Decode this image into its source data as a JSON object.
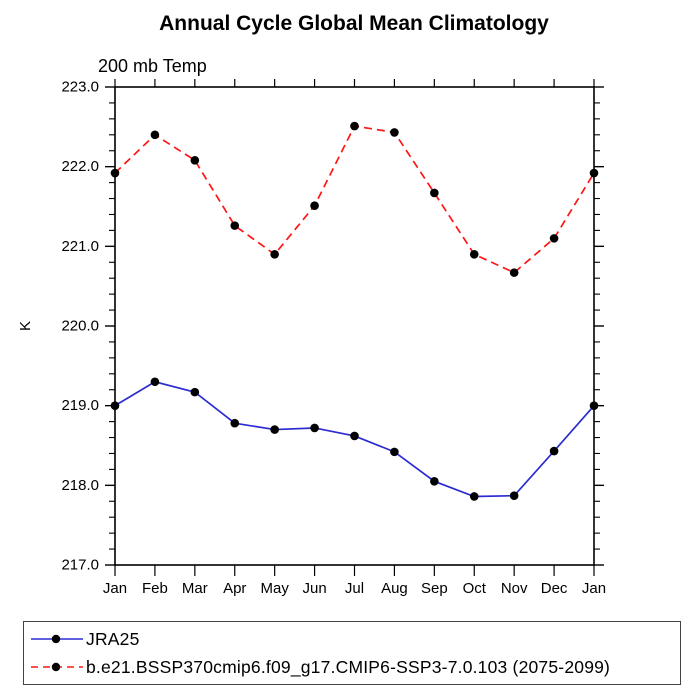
{
  "chart_data": {
    "type": "line",
    "title": "Annual Cycle Global Mean Climatology",
    "subtitle": "200 mb Temp",
    "ylabel": "K",
    "x_categories": [
      "Jan",
      "Feb",
      "Mar",
      "Apr",
      "May",
      "Jun",
      "Jul",
      "Aug",
      "Sep",
      "Oct",
      "Nov",
      "Dec",
      "Jan"
    ],
    "ylim": [
      217.0,
      223.0
    ],
    "ytick_step": 1.0,
    "ytick_minor_step": 0.2,
    "ytick_labels": [
      "217.0",
      "218.0",
      "219.0",
      "220.0",
      "221.0",
      "222.0",
      "223.0"
    ],
    "grid": "off",
    "legend_position": "bottom-left-box",
    "marker_color": "#000000",
    "series": [
      {
        "name": "JRA25",
        "color": "#2b2bd0",
        "style": "solid",
        "marker": "filled-circle",
        "values": [
          219.0,
          219.3,
          219.17,
          218.78,
          218.7,
          218.72,
          218.62,
          218.42,
          218.05,
          217.86,
          217.87,
          218.43,
          219.0
        ]
      },
      {
        "name": "b.e21.BSSP370cmip6.f09_g17.CMIP6-SSP3-7.0.103 (2075-2099)",
        "color": "#ff1414",
        "style": "dashed",
        "marker": "filled-circle",
        "values": [
          221.92,
          222.4,
          222.08,
          221.26,
          220.9,
          221.51,
          222.51,
          222.43,
          221.67,
          220.9,
          220.67,
          221.1,
          221.92
        ]
      }
    ]
  }
}
